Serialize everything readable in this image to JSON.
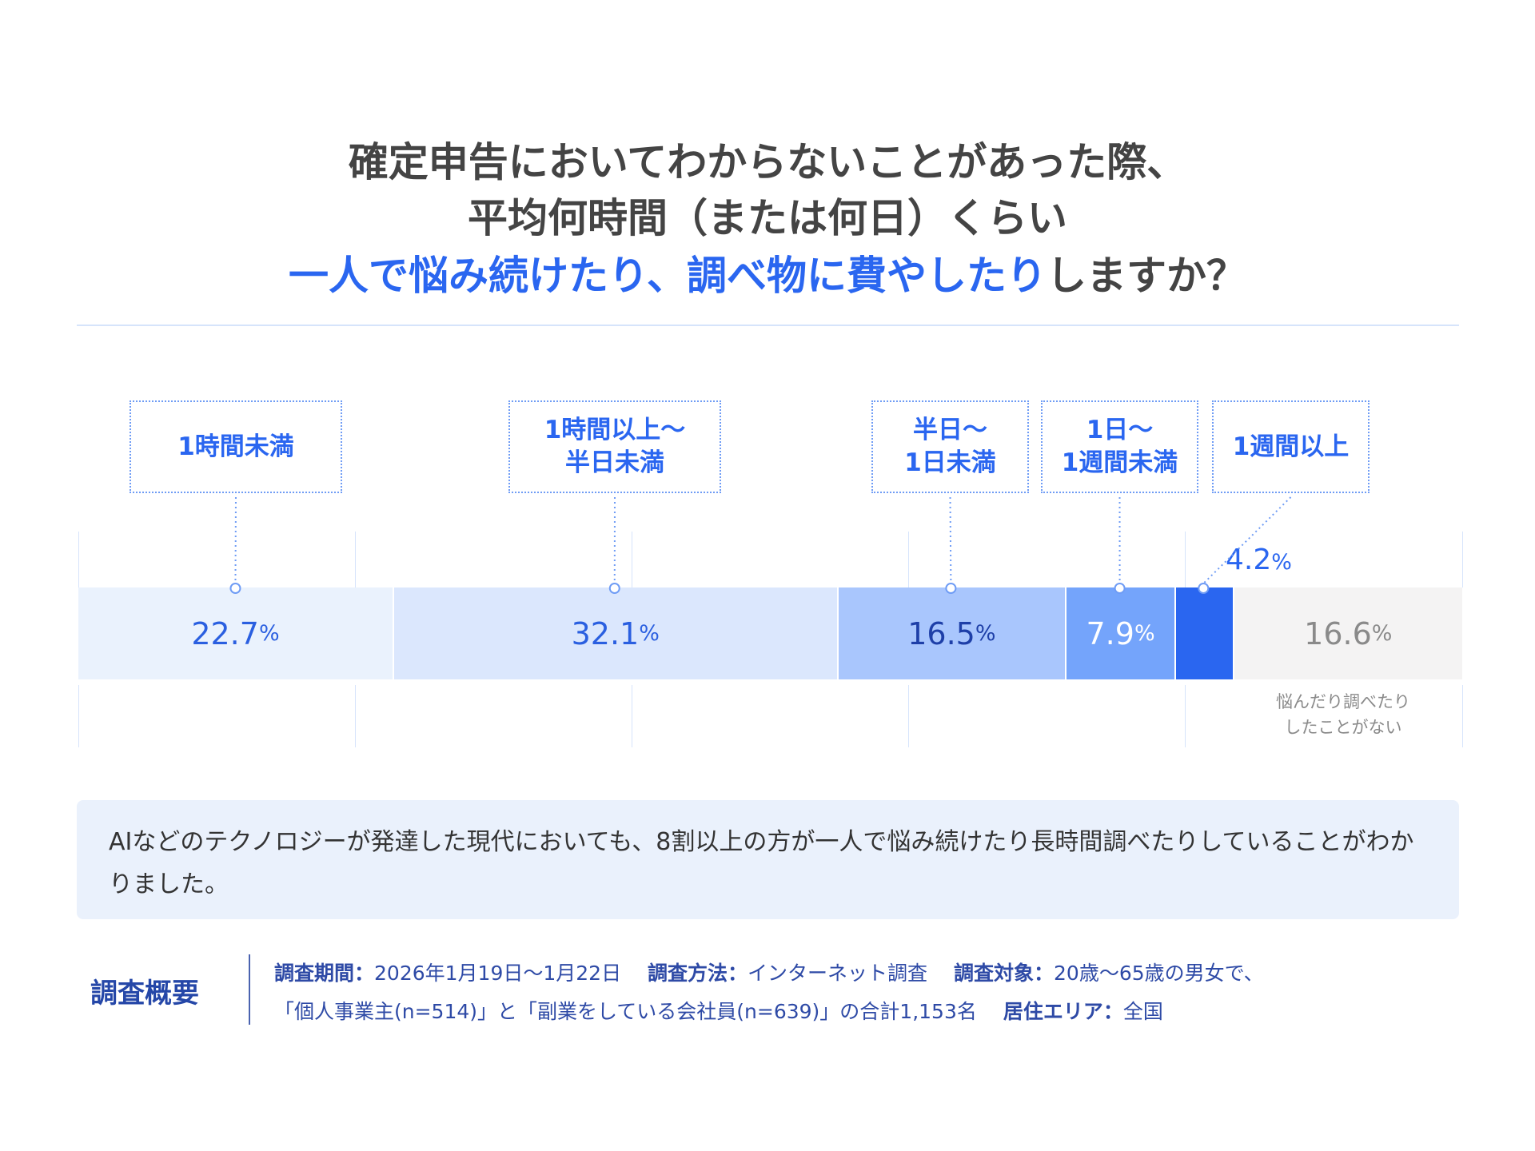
{
  "title": {
    "line1": "確定申告においてわからないことがあった際、",
    "line2": "平均何時間（または何日）くらい",
    "line3_highlight": "一人で悩み続けたり、調べ物に費やしたり",
    "line3_rest": "しますか？"
  },
  "colors": {
    "accent": "#2a66f0",
    "title": "#444444",
    "info_bg": "#eaf1fc"
  },
  "chart_data": {
    "type": "bar",
    "orientation": "horizontal-stacked",
    "unit": "%",
    "categories": [
      "1時間未満",
      "1時間以上～半日未満",
      "半日～1日未満",
      "1日～1週間未満",
      "1週間以上",
      "悩んだり調べたりしたことがない"
    ],
    "category_lines": [
      [
        "1時間未満"
      ],
      [
        "1時間以上～",
        "半日未満"
      ],
      [
        "半日～",
        "1日未満"
      ],
      [
        "1日～",
        "1週間未満"
      ],
      [
        "1週間以上"
      ],
      [
        "悩んだり調べたり",
        "したことがない"
      ]
    ],
    "values": [
      22.7,
      32.1,
      16.5,
      7.9,
      4.2,
      16.6
    ],
    "value_labels": [
      "22.7",
      "32.1",
      "16.5",
      "7.9",
      "4.2",
      "16.6"
    ],
    "colors": [
      "#eaf2fd",
      "#dbe7fd",
      "#a9c6fd",
      "#74a4fb",
      "#2a66f0",
      "#f4f3f3"
    ],
    "label_colors": [
      "#2a5fe0",
      "#2a5fe0",
      "#1e3fa8",
      "#ffffff",
      "#2a66f0",
      "#8a8a8a"
    ],
    "xlim": [
      0,
      100
    ]
  },
  "info": "AIなどのテクノロジーが発達した現代においても、8割以上の方が一人で悩み続けたり長時間調べたりしていることがわかりました。",
  "summary": {
    "heading": "調査概要",
    "period_label": "調査期間：",
    "period": "2026年1月19日～1月22日",
    "method_label": "調査方法：",
    "method": "インターネット調査",
    "target_label": "調査対象：",
    "target": "20歳～65歳の男女で、",
    "target2": "「個人事業主(n=514)」と「副業をしている会社員(n=639)」の合計1,153名",
    "area_label": "居住エリア：",
    "area": "全国"
  }
}
